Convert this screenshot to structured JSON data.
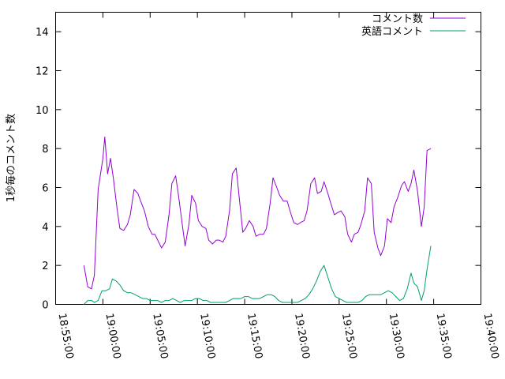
{
  "chart_data": {
    "type": "line",
    "ylabel": "1秒毎のコメント数",
    "ylim": [
      0,
      15
    ],
    "yticks": [
      0,
      2,
      4,
      6,
      8,
      10,
      12,
      14
    ],
    "xlim_minutes": [
      -5,
      40
    ],
    "xticks": [
      {
        "value": -5,
        "label": "18:55:00"
      },
      {
        "value": 0,
        "label": "19:00:00"
      },
      {
        "value": 5,
        "label": "19:05:00"
      },
      {
        "value": 10,
        "label": "19:10:00"
      },
      {
        "value": 15,
        "label": "19:15:00"
      },
      {
        "value": 20,
        "label": "19:20:00"
      },
      {
        "value": 25,
        "label": "19:25:00"
      },
      {
        "value": 30,
        "label": "19:30:00"
      },
      {
        "value": 35,
        "label": "19:35:00"
      },
      {
        "value": 40,
        "label": "19:40:00"
      }
    ],
    "grid": false,
    "legend_position": "top-right",
    "series": [
      {
        "name": "コメント数",
        "color": "#9400d3",
        "points": [
          [
            -2.0,
            2.0
          ],
          [
            -1.6,
            0.9
          ],
          [
            -1.2,
            0.8
          ],
          [
            -0.9,
            1.5
          ],
          [
            -0.5,
            5.9
          ],
          [
            0.0,
            7.5
          ],
          [
            0.2,
            8.6
          ],
          [
            0.5,
            6.7
          ],
          [
            0.8,
            7.5
          ],
          [
            1.1,
            6.5
          ],
          [
            1.5,
            4.9
          ],
          [
            1.8,
            3.9
          ],
          [
            2.2,
            3.8
          ],
          [
            2.6,
            4.1
          ],
          [
            2.9,
            4.6
          ],
          [
            3.3,
            5.9
          ],
          [
            3.7,
            5.7
          ],
          [
            4.0,
            5.3
          ],
          [
            4.4,
            4.8
          ],
          [
            4.8,
            4.0
          ],
          [
            5.2,
            3.6
          ],
          [
            5.5,
            3.6
          ],
          [
            5.9,
            3.2
          ],
          [
            6.2,
            2.9
          ],
          [
            6.6,
            3.2
          ],
          [
            7.0,
            4.6
          ],
          [
            7.3,
            6.2
          ],
          [
            7.7,
            6.6
          ],
          [
            8.0,
            5.6
          ],
          [
            8.4,
            4.1
          ],
          [
            8.7,
            3.0
          ],
          [
            9.1,
            4.1
          ],
          [
            9.4,
            5.6
          ],
          [
            9.8,
            5.2
          ],
          [
            10.1,
            4.3
          ],
          [
            10.5,
            4.0
          ],
          [
            10.9,
            3.9
          ],
          [
            11.2,
            3.3
          ],
          [
            11.6,
            3.1
          ],
          [
            12.0,
            3.3
          ],
          [
            12.3,
            3.3
          ],
          [
            12.7,
            3.2
          ],
          [
            13.0,
            3.5
          ],
          [
            13.4,
            4.8
          ],
          [
            13.7,
            6.7
          ],
          [
            14.1,
            7.0
          ],
          [
            14.4,
            5.6
          ],
          [
            14.8,
            3.7
          ],
          [
            15.1,
            3.9
          ],
          [
            15.5,
            4.3
          ],
          [
            15.9,
            4.0
          ],
          [
            16.2,
            3.5
          ],
          [
            16.6,
            3.6
          ],
          [
            17.0,
            3.6
          ],
          [
            17.3,
            3.9
          ],
          [
            17.7,
            5.2
          ],
          [
            18.0,
            6.5
          ],
          [
            18.4,
            6.0
          ],
          [
            18.7,
            5.6
          ],
          [
            19.1,
            5.3
          ],
          [
            19.5,
            5.3
          ],
          [
            19.8,
            4.8
          ],
          [
            20.2,
            4.2
          ],
          [
            20.6,
            4.1
          ],
          [
            20.9,
            4.2
          ],
          [
            21.3,
            4.3
          ],
          [
            21.6,
            4.8
          ],
          [
            22.0,
            6.2
          ],
          [
            22.4,
            6.5
          ],
          [
            22.7,
            5.7
          ],
          [
            23.1,
            5.8
          ],
          [
            23.4,
            6.3
          ],
          [
            23.8,
            5.7
          ],
          [
            24.1,
            5.2
          ],
          [
            24.5,
            4.6
          ],
          [
            24.8,
            4.7
          ],
          [
            25.2,
            4.8
          ],
          [
            25.6,
            4.5
          ],
          [
            25.9,
            3.6
          ],
          [
            26.3,
            3.2
          ],
          [
            26.6,
            3.6
          ],
          [
            27.0,
            3.7
          ],
          [
            27.3,
            4.1
          ],
          [
            27.7,
            4.8
          ],
          [
            28.0,
            6.5
          ],
          [
            28.4,
            6.2
          ],
          [
            28.7,
            3.7
          ],
          [
            29.1,
            2.9
          ],
          [
            29.4,
            2.5
          ],
          [
            29.8,
            3.0
          ],
          [
            30.1,
            4.4
          ],
          [
            30.5,
            4.2
          ],
          [
            30.8,
            5.0
          ],
          [
            31.2,
            5.5
          ],
          [
            31.6,
            6.1
          ],
          [
            31.9,
            6.3
          ],
          [
            32.3,
            5.8
          ],
          [
            32.6,
            6.2
          ],
          [
            32.9,
            6.9
          ],
          [
            33.3,
            5.8
          ],
          [
            33.7,
            4.0
          ],
          [
            34.0,
            5.0
          ],
          [
            34.3,
            7.9
          ],
          [
            34.7,
            8.0
          ]
        ]
      },
      {
        "name": "英語コメント",
        "color": "#009e73",
        "points": [
          [
            -2.0,
            0.0
          ],
          [
            -1.6,
            0.2
          ],
          [
            -1.2,
            0.2
          ],
          [
            -0.9,
            0.1
          ],
          [
            -0.5,
            0.2
          ],
          [
            -0.1,
            0.7
          ],
          [
            0.3,
            0.7
          ],
          [
            0.7,
            0.8
          ],
          [
            1.0,
            1.3
          ],
          [
            1.4,
            1.2
          ],
          [
            1.8,
            1.0
          ],
          [
            2.2,
            0.7
          ],
          [
            2.6,
            0.6
          ],
          [
            3.0,
            0.6
          ],
          [
            3.4,
            0.5
          ],
          [
            3.8,
            0.4
          ],
          [
            4.2,
            0.3
          ],
          [
            4.6,
            0.3
          ],
          [
            5.0,
            0.2
          ],
          [
            5.4,
            0.2
          ],
          [
            5.8,
            0.2
          ],
          [
            6.2,
            0.1
          ],
          [
            6.6,
            0.2
          ],
          [
            7.0,
            0.2
          ],
          [
            7.4,
            0.3
          ],
          [
            7.8,
            0.2
          ],
          [
            8.2,
            0.1
          ],
          [
            8.6,
            0.2
          ],
          [
            9.0,
            0.2
          ],
          [
            9.4,
            0.2
          ],
          [
            9.8,
            0.3
          ],
          [
            10.2,
            0.3
          ],
          [
            10.6,
            0.2
          ],
          [
            11.0,
            0.2
          ],
          [
            11.4,
            0.1
          ],
          [
            11.8,
            0.1
          ],
          [
            12.2,
            0.1
          ],
          [
            12.6,
            0.1
          ],
          [
            13.0,
            0.1
          ],
          [
            13.4,
            0.2
          ],
          [
            13.8,
            0.3
          ],
          [
            14.2,
            0.3
          ],
          [
            14.6,
            0.3
          ],
          [
            15.0,
            0.4
          ],
          [
            15.4,
            0.4
          ],
          [
            15.8,
            0.3
          ],
          [
            16.2,
            0.3
          ],
          [
            16.6,
            0.3
          ],
          [
            17.0,
            0.4
          ],
          [
            17.4,
            0.5
          ],
          [
            17.8,
            0.5
          ],
          [
            18.2,
            0.4
          ],
          [
            18.6,
            0.2
          ],
          [
            19.0,
            0.1
          ],
          [
            19.4,
            0.1
          ],
          [
            19.8,
            0.1
          ],
          [
            20.2,
            0.1
          ],
          [
            20.6,
            0.1
          ],
          [
            21.0,
            0.2
          ],
          [
            21.4,
            0.3
          ],
          [
            21.8,
            0.5
          ],
          [
            22.2,
            0.8
          ],
          [
            22.6,
            1.2
          ],
          [
            23.0,
            1.7
          ],
          [
            23.4,
            2.0
          ],
          [
            23.8,
            1.4
          ],
          [
            24.2,
            0.8
          ],
          [
            24.6,
            0.4
          ],
          [
            25.0,
            0.3
          ],
          [
            25.4,
            0.2
          ],
          [
            25.8,
            0.1
          ],
          [
            26.2,
            0.1
          ],
          [
            26.6,
            0.1
          ],
          [
            27.0,
            0.1
          ],
          [
            27.4,
            0.2
          ],
          [
            27.8,
            0.4
          ],
          [
            28.2,
            0.5
          ],
          [
            28.6,
            0.5
          ],
          [
            29.0,
            0.5
          ],
          [
            29.4,
            0.5
          ],
          [
            29.8,
            0.6
          ],
          [
            30.2,
            0.7
          ],
          [
            30.6,
            0.6
          ],
          [
            31.0,
            0.4
          ],
          [
            31.4,
            0.2
          ],
          [
            31.8,
            0.3
          ],
          [
            32.2,
            0.8
          ],
          [
            32.6,
            1.6
          ],
          [
            32.9,
            1.1
          ],
          [
            33.3,
            0.9
          ],
          [
            33.7,
            0.2
          ],
          [
            34.0,
            0.7
          ],
          [
            34.3,
            1.8
          ],
          [
            34.7,
            3.0
          ]
        ]
      }
    ]
  }
}
